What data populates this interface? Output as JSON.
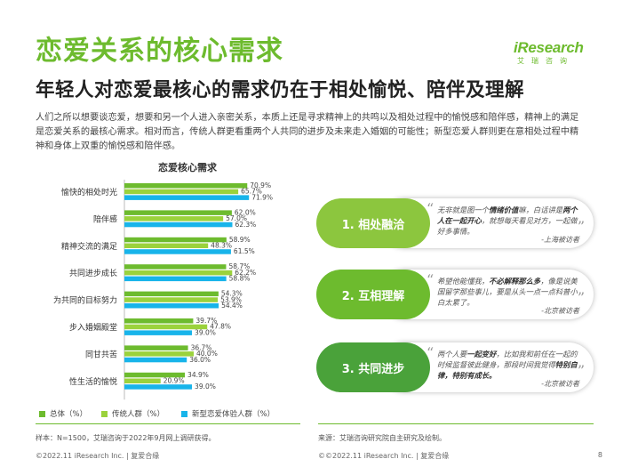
{
  "header": {
    "title": "恋爱关系的核心需求",
    "subtitle": "年轻人对恋爱最核心的需求仍在于相处愉悦、陪伴及理解",
    "logo_main": "iResearch",
    "logo_sub": "艾瑞咨询"
  },
  "intro": "人们之所以想要谈恋爱，想要和另一个人进入亲密关系，本质上还是寻求精神上的共鸣以及相处过程中的愉悦感和陪伴感，精神上的满足是恋爱关系的最核心需求。相对而言，传统人群更看重两个人共同的进步及未来走入婚姻的可能性；新型恋爱人群则更在意相处过程中精神和身体上双重的愉悦感和陪伴感。",
  "chart_data": {
    "type": "bar",
    "orientation": "horizontal",
    "title": "恋爱核心需求",
    "categories": [
      "愉快的相处时光",
      "陪伴感",
      "精神交流的满足",
      "共同进步成长",
      "为共同的目标努力",
      "步入婚姻殿堂",
      "同甘共苦",
      "性生活的愉悦"
    ],
    "series": [
      {
        "name": "总体（%）",
        "color": "#6dbb2e",
        "values": [
          70.9,
          62.0,
          58.9,
          58.7,
          54.3,
          39.7,
          36.7,
          34.9
        ],
        "labels": [
          "70.9%",
          "62.0%",
          "58.9%",
          "58.7%",
          "54.3%",
          "39.7%",
          "36.7%",
          "34.9%"
        ]
      },
      {
        "name": "传统人群（%）",
        "color": "#9bd23c",
        "values": [
          65.7,
          57.0,
          48.3,
          62.2,
          53.9,
          47.8,
          40.0,
          20.9
        ],
        "labels": [
          "65.7%",
          "57.0%",
          "48.3%",
          "62.2%",
          "53.9%",
          "47.8%",
          "40.0%",
          "20.9%"
        ]
      },
      {
        "name": "新型恋爱体验人群（%）",
        "color": "#18b4ea",
        "values": [
          71.9,
          62.3,
          61.5,
          58.8,
          54.4,
          39.0,
          36.0,
          39.0
        ],
        "labels": [
          "71.9%",
          "62.3%",
          "61.5%",
          "58.8%",
          "54.4%",
          "39.0%",
          "36.0%",
          "39.0%"
        ]
      }
    ],
    "xlim": [
      0,
      80
    ]
  },
  "insights": [
    {
      "label": "1. 相处融洽",
      "color": "#8cc63e",
      "quote_pre": "无非就是图一个",
      "quote_bold1": "情绪价值",
      "quote_mid": "嘛，白话讲是",
      "quote_bold2": "两个人在一起开心",
      "quote_post": "，就想每天看见对方，一起做好多事情。",
      "source": "-上海被访者"
    },
    {
      "label": "2. 互相理解",
      "color": "#6dbb2e",
      "quote_pre": "希望他能懂我，",
      "quote_bold1": "不必解释那么多",
      "quote_mid": "，像是说美国留学那些事儿，要是从头一点一点科普小白太累了。",
      "quote_bold2": "",
      "quote_post": "",
      "source": "-北京被访者"
    },
    {
      "label": "3. 共同进步",
      "color": "#4aa23a",
      "quote_pre": "两个人要",
      "quote_bold1": "一起变好",
      "quote_mid": "，比如我和前任在一起的时候监督彼此健身，那段时间我觉得",
      "quote_bold2": "特别自律，特别有成长。",
      "quote_post": "",
      "source": "-北京被访者"
    }
  ],
  "notes": {
    "sample": "样本：N=1500，艾瑞咨询于2022年9月网上调研获得。",
    "source": "来源：艾瑞咨询研究院自主研究及绘制。"
  },
  "footer": {
    "left": "©2022.11 iResearch Inc. | 复爱合缘",
    "right": "©©2022.11 iResearch Inc. | 复爱合缘",
    "page": "8"
  }
}
